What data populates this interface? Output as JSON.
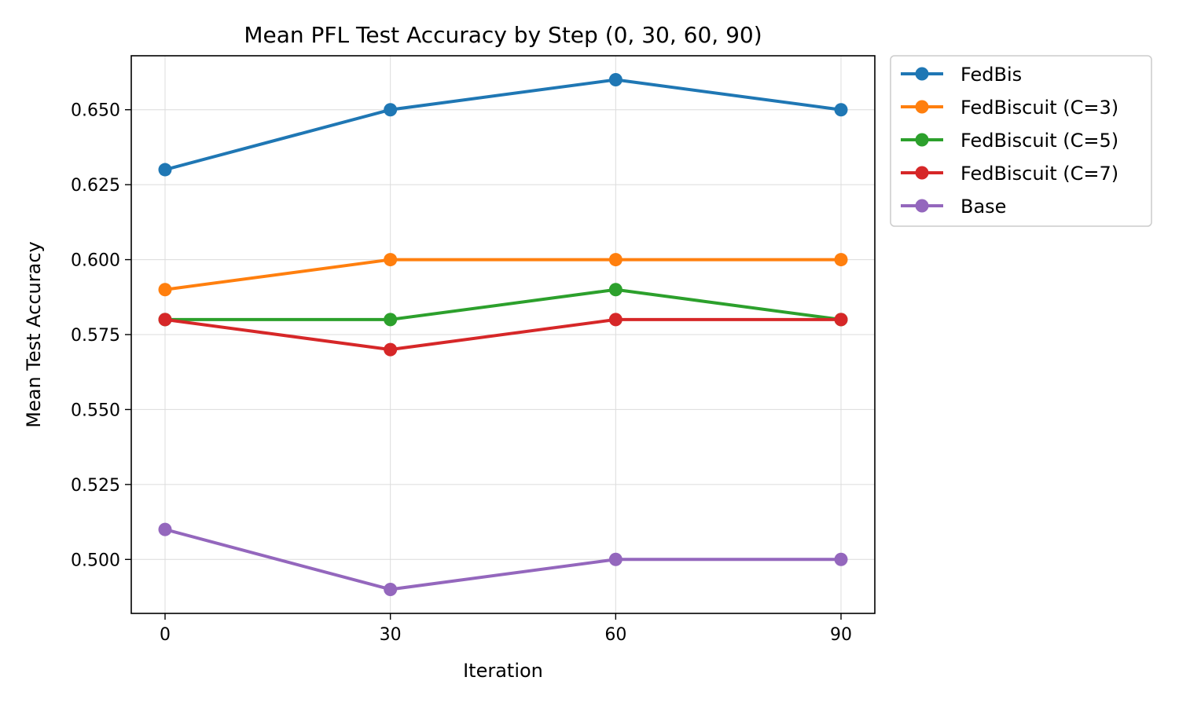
{
  "chart_data": {
    "type": "line",
    "title": "Mean PFL Test Accuracy by Step (0, 30, 60, 90)",
    "xlabel": "Iteration",
    "ylabel": "Mean Test Accuracy",
    "x": [
      0,
      30,
      60,
      90
    ],
    "x_tick_labels": [
      "0",
      "30",
      "60",
      "90"
    ],
    "y_ticks": [
      0.5,
      0.525,
      0.55,
      0.575,
      0.6,
      0.625,
      0.65
    ],
    "y_tick_labels": [
      "0.500",
      "0.525",
      "0.550",
      "0.575",
      "0.600",
      "0.625",
      "0.650"
    ],
    "xlim": [
      -4.5,
      94.5
    ],
    "ylim": [
      0.482,
      0.668
    ],
    "grid": true,
    "legend_position": "outside-top-right",
    "series": [
      {
        "name": "FedBis",
        "color": "#1f77b4",
        "values": [
          0.63,
          0.65,
          0.66,
          0.65
        ]
      },
      {
        "name": "FedBiscuit (C=3)",
        "color": "#ff7f0e",
        "values": [
          0.59,
          0.6,
          0.6,
          0.6
        ]
      },
      {
        "name": "FedBiscuit (C=5)",
        "color": "#2ca02c",
        "values": [
          0.58,
          0.58,
          0.59,
          0.58
        ]
      },
      {
        "name": "FedBiscuit (C=7)",
        "color": "#d62728",
        "values": [
          0.58,
          0.57,
          0.58,
          0.58
        ]
      },
      {
        "name": "Base",
        "color": "#9467bd",
        "values": [
          0.51,
          0.49,
          0.5,
          0.5
        ]
      }
    ]
  }
}
